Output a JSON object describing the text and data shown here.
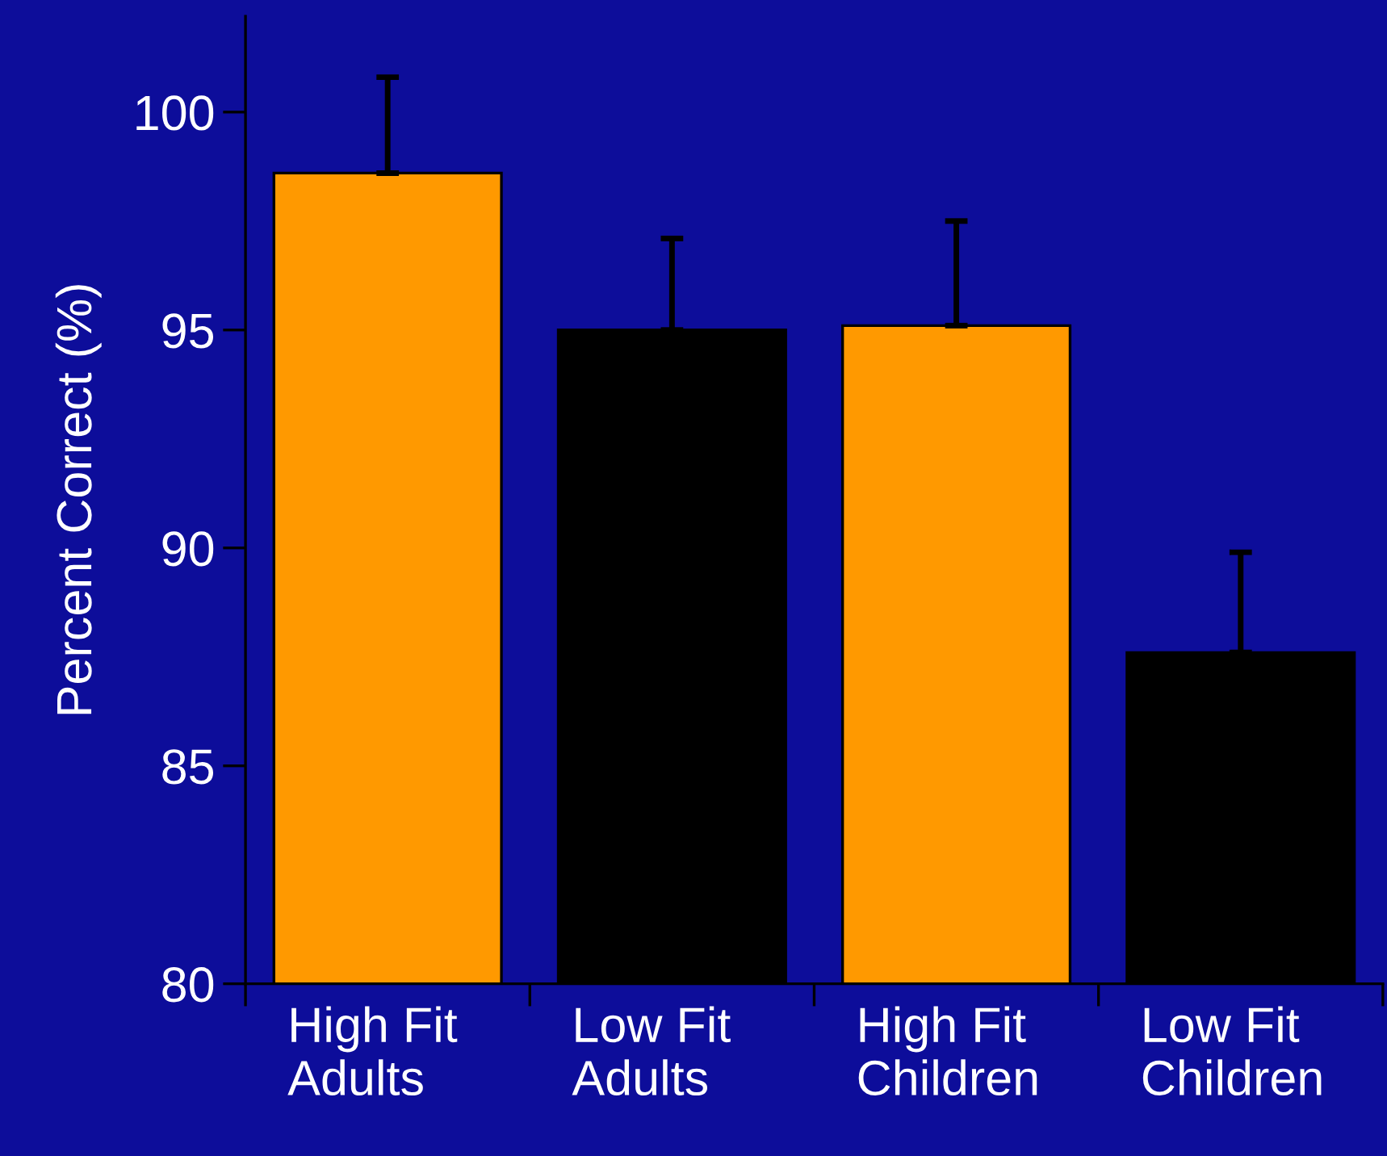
{
  "chart_data": {
    "type": "bar",
    "ylabel": "Percent Correct (%)",
    "categories": [
      "High Fit\nAdults",
      "Low Fit\nAdults",
      "High Fit\nChildren",
      "Low Fit\nChildren"
    ],
    "values": [
      98.6,
      95.0,
      95.1,
      87.6
    ],
    "colors": [
      "#ff9900",
      "#000000",
      "#ff9900",
      "#000000"
    ],
    "errors": [
      [
        98.6,
        100.8
      ],
      [
        95.0,
        97.1
      ],
      [
        95.1,
        97.5
      ],
      [
        87.6,
        89.9
      ]
    ],
    "ylim": [
      80,
      102.2
    ],
    "yticks": [
      80,
      85,
      90,
      95,
      100
    ],
    "grid": false,
    "legend": false
  }
}
